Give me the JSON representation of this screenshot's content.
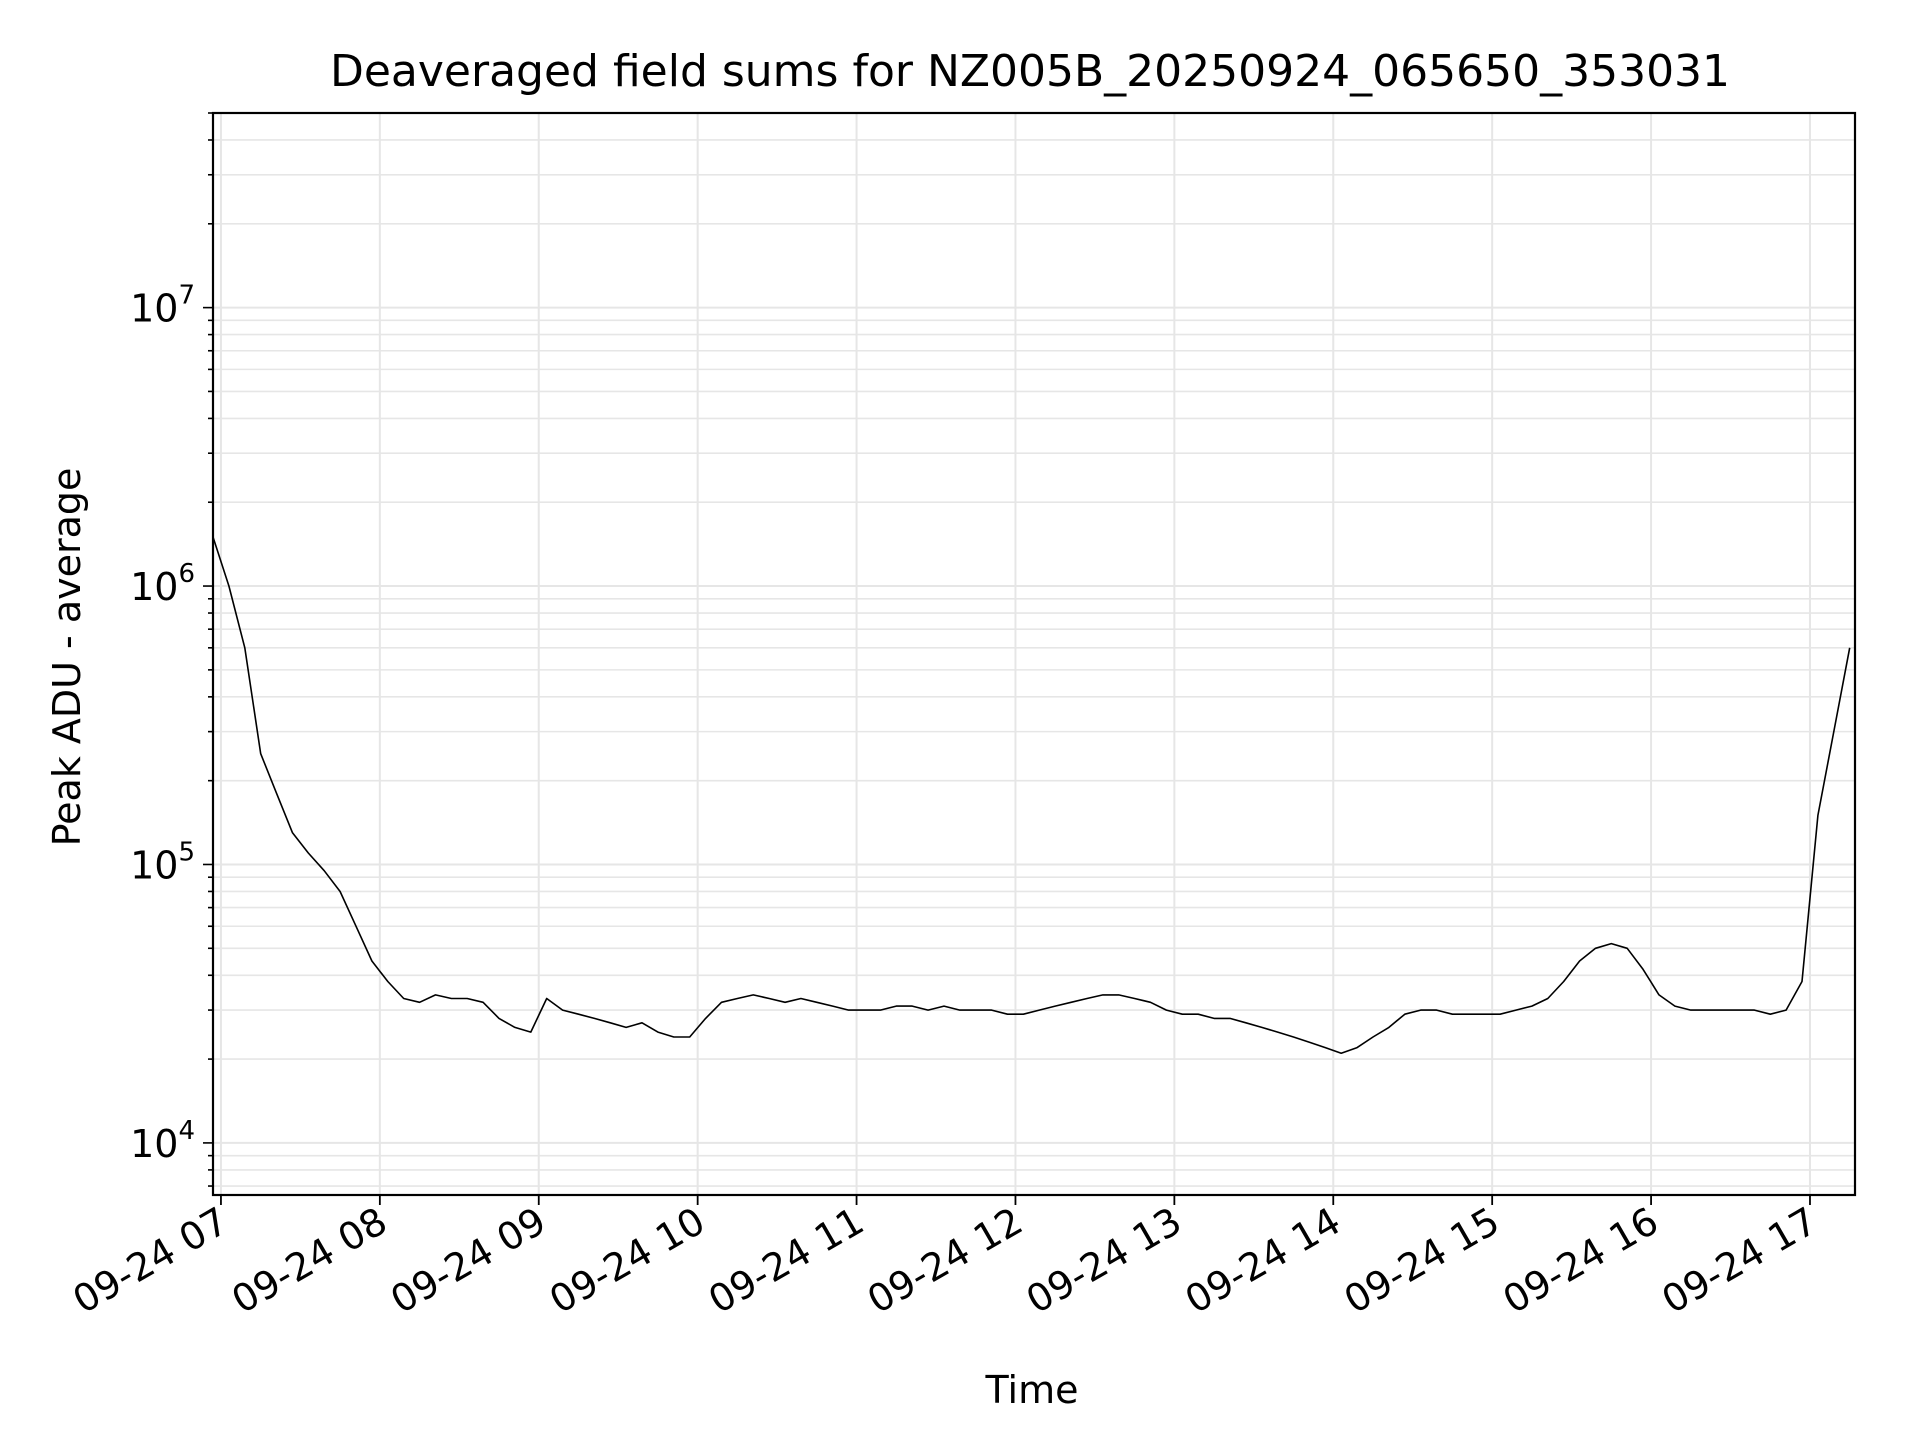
{
  "chart_data": {
    "type": "line",
    "title": "Deaveraged field sums for NZ005B_20250924_065650_353031",
    "xlabel": "Time",
    "ylabel": "Peak ADU - average",
    "yscale": "log",
    "ylim": [
      6500,
      50000000
    ],
    "xlim": [
      "2025-09-24 06:57",
      "2025-09-24 17:17"
    ],
    "grid": true,
    "line_color": "#000000",
    "grid_color": "#e6e6e6",
    "x_ticks": [
      {
        "value": "2025-09-24 07:00",
        "label": "09-24 07"
      },
      {
        "value": "2025-09-24 08:00",
        "label": "09-24 08"
      },
      {
        "value": "2025-09-24 09:00",
        "label": "09-24 09"
      },
      {
        "value": "2025-09-24 10:00",
        "label": "09-24 10"
      },
      {
        "value": "2025-09-24 11:00",
        "label": "09-24 11"
      },
      {
        "value": "2025-09-24 12:00",
        "label": "09-24 12"
      },
      {
        "value": "2025-09-24 13:00",
        "label": "09-24 13"
      },
      {
        "value": "2025-09-24 14:00",
        "label": "09-24 14"
      },
      {
        "value": "2025-09-24 15:00",
        "label": "09-24 15"
      },
      {
        "value": "2025-09-24 16:00",
        "label": "09-24 16"
      },
      {
        "value": "2025-09-24 17:00",
        "label": "09-24 17"
      }
    ],
    "y_ticks": [
      {
        "value": 10000,
        "base": "10",
        "exp": "4"
      },
      {
        "value": 100000,
        "base": "10",
        "exp": "5"
      },
      {
        "value": 1000000,
        "base": "10",
        "exp": "6"
      },
      {
        "value": 10000000,
        "base": "10",
        "exp": "7"
      }
    ],
    "series": [
      {
        "x": [
          "2025-09-24 06:57",
          "2025-09-24 07:03",
          "2025-09-24 07:09",
          "2025-09-24 07:15",
          "2025-09-24 07:21",
          "2025-09-24 07:27",
          "2025-09-24 07:33",
          "2025-09-24 07:39",
          "2025-09-24 07:45",
          "2025-09-24 07:51",
          "2025-09-24 07:57",
          "2025-09-24 08:03",
          "2025-09-24 08:09",
          "2025-09-24 08:15",
          "2025-09-24 08:21",
          "2025-09-24 08:27",
          "2025-09-24 08:33",
          "2025-09-24 08:39",
          "2025-09-24 08:45",
          "2025-09-24 08:51",
          "2025-09-24 08:57",
          "2025-09-24 09:03",
          "2025-09-24 09:09",
          "2025-09-24 09:15",
          "2025-09-24 09:21",
          "2025-09-24 09:27",
          "2025-09-24 09:33",
          "2025-09-24 09:39",
          "2025-09-24 09:45",
          "2025-09-24 09:51",
          "2025-09-24 09:57",
          "2025-09-24 10:03",
          "2025-09-24 10:09",
          "2025-09-24 10:15",
          "2025-09-24 10:21",
          "2025-09-24 10:27",
          "2025-09-24 10:33",
          "2025-09-24 10:39",
          "2025-09-24 10:45",
          "2025-09-24 10:51",
          "2025-09-24 10:57",
          "2025-09-24 11:03",
          "2025-09-24 11:09",
          "2025-09-24 11:15",
          "2025-09-24 11:21",
          "2025-09-24 11:27",
          "2025-09-24 11:33",
          "2025-09-24 11:39",
          "2025-09-24 11:45",
          "2025-09-24 11:51",
          "2025-09-24 11:57",
          "2025-09-24 12:03",
          "2025-09-24 12:09",
          "2025-09-24 12:15",
          "2025-09-24 12:21",
          "2025-09-24 12:27",
          "2025-09-24 12:33",
          "2025-09-24 12:39",
          "2025-09-24 12:45",
          "2025-09-24 12:51",
          "2025-09-24 12:57",
          "2025-09-24 13:03",
          "2025-09-24 13:09",
          "2025-09-24 13:15",
          "2025-09-24 13:21",
          "2025-09-24 13:27",
          "2025-09-24 13:33",
          "2025-09-24 13:39",
          "2025-09-24 13:45",
          "2025-09-24 13:51",
          "2025-09-24 13:57",
          "2025-09-24 14:03",
          "2025-09-24 14:09",
          "2025-09-24 14:15",
          "2025-09-24 14:21",
          "2025-09-24 14:27",
          "2025-09-24 14:33",
          "2025-09-24 14:39",
          "2025-09-24 14:45",
          "2025-09-24 14:51",
          "2025-09-24 14:57",
          "2025-09-24 15:03",
          "2025-09-24 15:09",
          "2025-09-24 15:15",
          "2025-09-24 15:21",
          "2025-09-24 15:27",
          "2025-09-24 15:33",
          "2025-09-24 15:39",
          "2025-09-24 15:45",
          "2025-09-24 15:51",
          "2025-09-24 15:57",
          "2025-09-24 16:03",
          "2025-09-24 16:09",
          "2025-09-24 16:15",
          "2025-09-24 16:21",
          "2025-09-24 16:27",
          "2025-09-24 16:33",
          "2025-09-24 16:39",
          "2025-09-24 16:45",
          "2025-09-24 16:51",
          "2025-09-24 16:57",
          "2025-09-24 17:03",
          "2025-09-24 17:09",
          "2025-09-24 17:15"
        ],
        "y": [
          1500000,
          1000000,
          600000,
          250000,
          180000,
          130000,
          110000,
          95000,
          80000,
          60000,
          45000,
          38000,
          33000,
          32000,
          34000,
          33000,
          33000,
          32000,
          28000,
          26000,
          25000,
          33000,
          30000,
          29000,
          28000,
          27000,
          26000,
          27000,
          25000,
          24000,
          24000,
          28000,
          32000,
          33000,
          34000,
          33000,
          32000,
          33000,
          32000,
          31000,
          30000,
          30000,
          30000,
          31000,
          31000,
          30000,
          31000,
          30000,
          30000,
          30000,
          29000,
          29000,
          30000,
          31000,
          32000,
          33000,
          34000,
          34000,
          33000,
          32000,
          30000,
          29000,
          29000,
          28000,
          28000,
          27000,
          26000,
          25000,
          24000,
          23000,
          22000,
          21000,
          22000,
          24000,
          26000,
          29000,
          30000,
          30000,
          29000,
          29000,
          29000,
          29000,
          30000,
          31000,
          33000,
          38000,
          45000,
          50000,
          52000,
          50000,
          42000,
          34000,
          31000,
          30000,
          30000,
          30000,
          30000,
          30000,
          29000,
          30000,
          38000,
          150000,
          300000,
          600000
        ]
      }
    ]
  }
}
